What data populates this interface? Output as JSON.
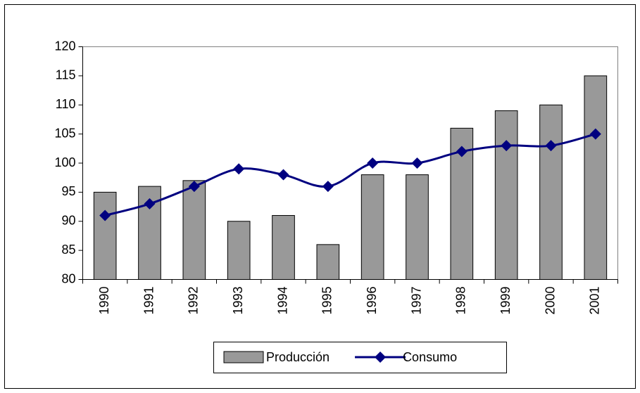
{
  "chart_data": {
    "type": "combo",
    "categories": [
      "1990",
      "1991",
      "1992",
      "1993",
      "1994",
      "1995",
      "1996",
      "1997",
      "1998",
      "1999",
      "2000",
      "2001"
    ],
    "series": [
      {
        "name": "Producción",
        "type": "bar",
        "color": "#999999",
        "values": [
          95,
          96,
          97,
          90,
          91,
          86,
          98,
          98,
          106,
          109,
          110,
          115
        ]
      },
      {
        "name": "Consumo",
        "type": "line",
        "color": "#000080",
        "values": [
          91,
          93,
          96,
          99,
          98,
          96,
          100,
          100,
          102,
          103,
          103,
          105
        ]
      }
    ],
    "ylim": [
      80,
      120
    ],
    "yticks": [
      80,
      85,
      90,
      95,
      100,
      105,
      110,
      115,
      120
    ],
    "grid": false,
    "legend": "bottom"
  }
}
